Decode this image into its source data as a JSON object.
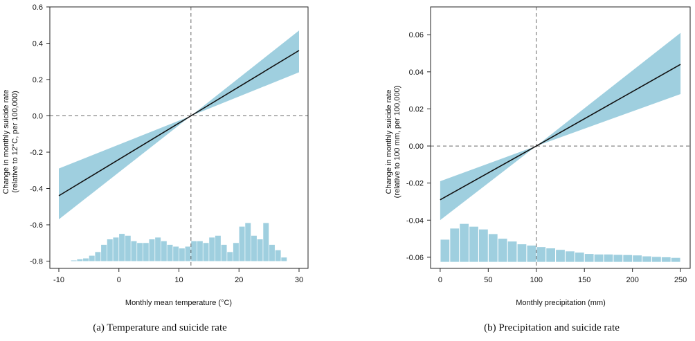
{
  "chart_data": [
    {
      "type": "line",
      "caption": "(a) Temperature and suicide rate",
      "xlabel": "Monthly mean temperature (°C)",
      "ylabel": "Change in monthly suicide rate",
      "ylabel2": "(relative to 12°C, per 100,000)",
      "xlim": [
        -11.5,
        31.5
      ],
      "ylim": [
        -0.84,
        0.6
      ],
      "xticks": [
        -10,
        0,
        10,
        20,
        30
      ],
      "xtick_labels": [
        "-10",
        "0",
        "10",
        "20",
        "30"
      ],
      "yticks": [
        -0.8,
        -0.6,
        -0.4,
        -0.2,
        0.0,
        0.2,
        0.4,
        0.6
      ],
      "ytick_labels": [
        "-0.8",
        "-0.6",
        "-0.4",
        "-0.2",
        "0.0",
        "0.2",
        "0.4",
        "0.6"
      ],
      "reference": {
        "x": 12,
        "y": 0.0
      },
      "series": [
        {
          "kind": "estimate",
          "x": [
            -10,
            12,
            30
          ],
          "y": [
            -0.44,
            0.0,
            0.36
          ],
          "lower": [
            -0.57,
            0.0,
            0.24
          ],
          "upper": [
            -0.29,
            0.0,
            0.47
          ]
        }
      ],
      "histogram": {
        "baseline": -0.8,
        "bin_width": 1,
        "bin_centers": [
          -7.5,
          -6.5,
          -5.5,
          -4.5,
          -3.5,
          -2.5,
          -1.5,
          -0.5,
          0.5,
          1.5,
          2.5,
          3.5,
          4.5,
          5.5,
          6.5,
          7.5,
          8.5,
          9.5,
          10.5,
          11.5,
          12.5,
          13.5,
          14.5,
          15.5,
          16.5,
          17.5,
          18.5,
          19.5,
          20.5,
          21.5,
          22.5,
          23.5,
          24.5,
          25.5,
          26.5,
          27.5
        ],
        "heights": [
          0.004,
          0.01,
          0.015,
          0.03,
          0.05,
          0.09,
          0.12,
          0.13,
          0.15,
          0.14,
          0.11,
          0.1,
          0.1,
          0.12,
          0.13,
          0.11,
          0.09,
          0.08,
          0.07,
          0.08,
          0.11,
          0.11,
          0.1,
          0.13,
          0.14,
          0.09,
          0.05,
          0.1,
          0.19,
          0.21,
          0.14,
          0.12,
          0.21,
          0.09,
          0.06,
          0.02
        ]
      }
    },
    {
      "type": "line",
      "caption": "(b) Precipitation and suicide rate",
      "xlabel": "Monthly precipitation (mm)",
      "ylabel": "Change in monthly suicide rate",
      "ylabel2": "(relative to 100 mm, per 100,000)",
      "xlim": [
        -10,
        260
      ],
      "ylim": [
        -0.066,
        0.075
      ],
      "xticks": [
        0,
        50,
        100,
        150,
        200,
        250
      ],
      "xtick_labels": [
        "0",
        "50",
        "100",
        "150",
        "200",
        "250"
      ],
      "yticks": [
        -0.06,
        -0.04,
        -0.02,
        0.0,
        0.02,
        0.04,
        0.06
      ],
      "ytick_labels": [
        "-0.06",
        "-0.04",
        "-0.02",
        "0.00",
        "0.02",
        "0.04",
        "0.06"
      ],
      "reference": {
        "x": 100,
        "y": 0.0
      },
      "series": [
        {
          "kind": "estimate",
          "x": [
            0,
            100,
            250
          ],
          "y": [
            -0.029,
            0.0,
            0.044
          ],
          "lower": [
            -0.04,
            0.0,
            0.028
          ],
          "upper": [
            -0.019,
            0.0,
            0.061
          ]
        }
      ],
      "histogram": {
        "baseline": -0.0625,
        "bin_width": 10,
        "bin_centers": [
          5,
          15,
          25,
          35,
          45,
          55,
          65,
          75,
          85,
          95,
          105,
          115,
          125,
          135,
          145,
          155,
          165,
          175,
          185,
          195,
          205,
          215,
          225,
          235,
          245
        ],
        "heights": [
          0.012,
          0.018,
          0.0205,
          0.019,
          0.0175,
          0.015,
          0.0125,
          0.011,
          0.0095,
          0.0088,
          0.008,
          0.0073,
          0.0065,
          0.0057,
          0.005,
          0.0043,
          0.004,
          0.004,
          0.0038,
          0.0037,
          0.0035,
          0.003,
          0.0027,
          0.0025,
          0.0022
        ]
      }
    }
  ],
  "colors": {
    "band": "#9fcfdf",
    "histogram": "#9fcfdf",
    "line": "#111111",
    "reference": "#666666",
    "axis": "#222222"
  }
}
